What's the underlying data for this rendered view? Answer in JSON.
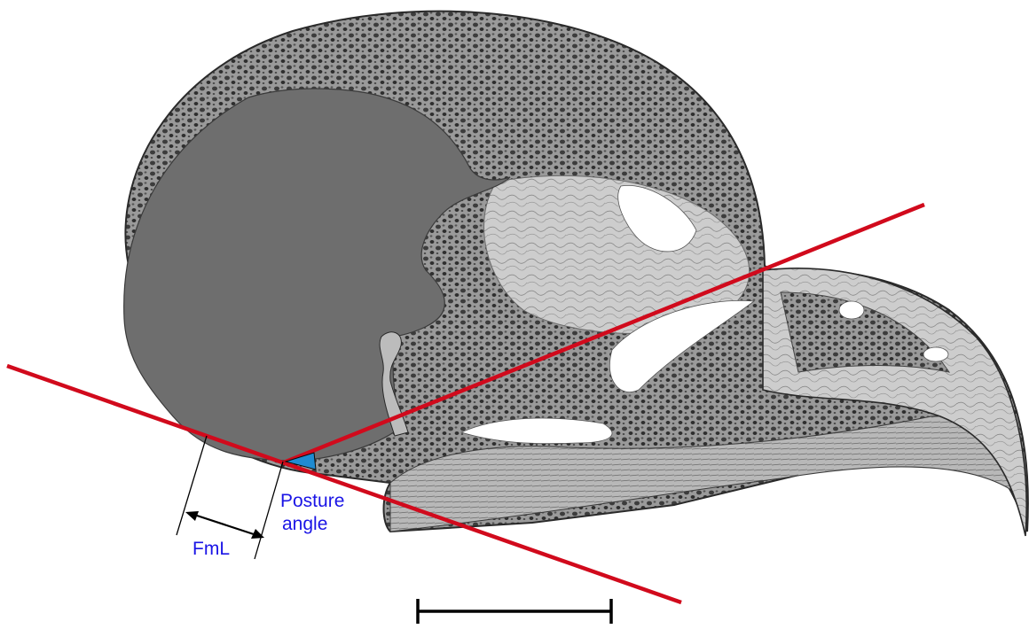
{
  "figure": {
    "labels": {
      "posture_line1": "Posture",
      "posture_line2": "angle",
      "fml": "FmL"
    },
    "colors": {
      "reference_lines": "#d10a1c",
      "angle_fill": "#1f8bd1",
      "label_blue": "#1a14e6",
      "measure_lines": "#000000",
      "braincase_cavity": "#6e6e6e",
      "bone_dark": "#4a4a4a",
      "bone_mid": "#8e8e8e",
      "bone_light": "#c4c4c4",
      "background": "#ffffff"
    },
    "elements": [
      "skull-cross-section",
      "braincase-cavity",
      "beak",
      "reference-line-1",
      "reference-line-2",
      "posture-angle-wedge",
      "fml-measure",
      "scale-bar"
    ]
  }
}
